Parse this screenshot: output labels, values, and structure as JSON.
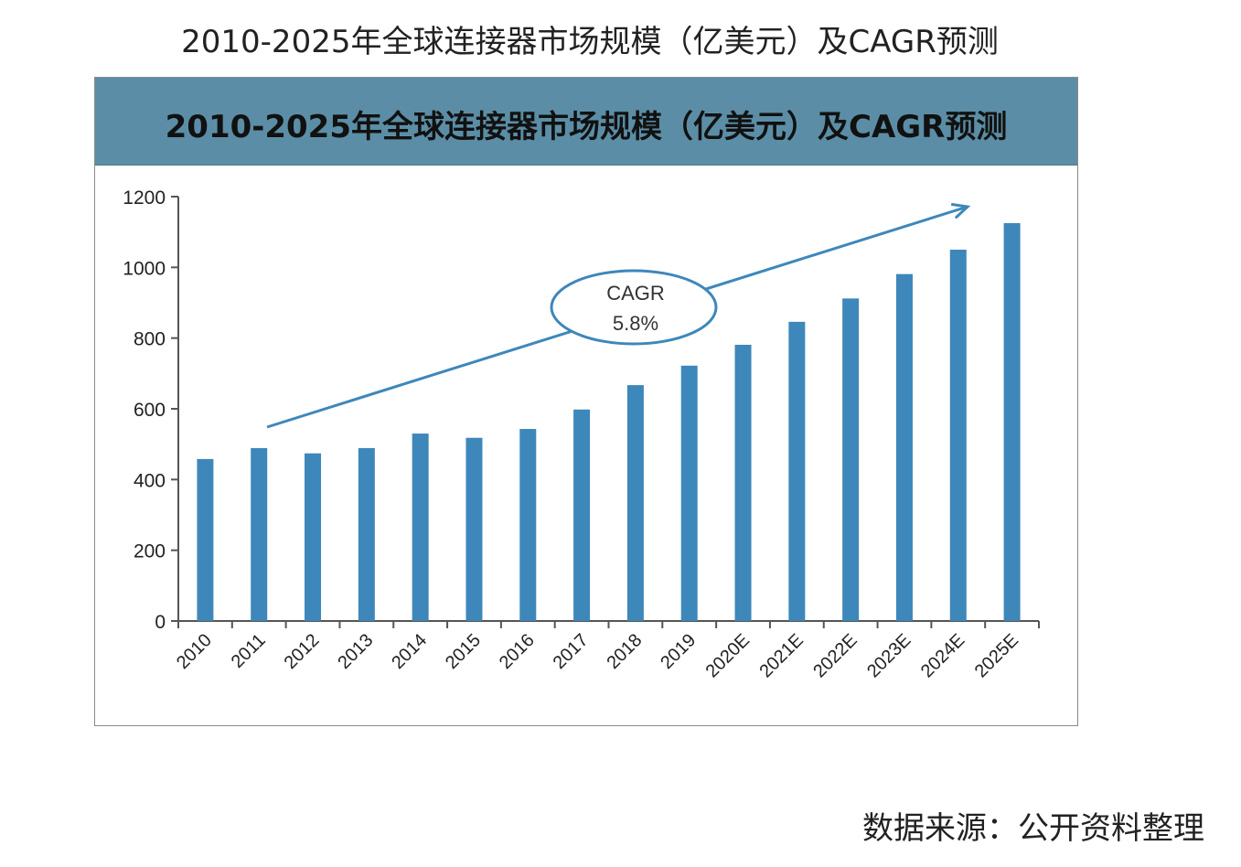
{
  "page": {
    "title": "2010-2025年全球连接器市场规模（亿美元）及CAGR预测",
    "source": "数据来源：公开资料整理"
  },
  "chart_data": {
    "type": "bar",
    "title": "2010-2025年全球连接器市场规模（亿美元）及CAGR预测",
    "categories": [
      "2010",
      "2011",
      "2012",
      "2013",
      "2014",
      "2015",
      "2016",
      "2017",
      "2018",
      "2019",
      "2020E",
      "2021E",
      "2022E",
      "2023E",
      "2024E",
      "2025E"
    ],
    "values": [
      458,
      489,
      474,
      489,
      530,
      518,
      543,
      598,
      667,
      722,
      781,
      846,
      912,
      981,
      1050,
      1125
    ],
    "ylim": [
      0,
      1200
    ],
    "yticks": [
      "0",
      "200",
      "400",
      "600",
      "800",
      "1000",
      "1200"
    ],
    "xlabel": "",
    "ylabel": "",
    "grid": false,
    "bar_color": "#3e87ba",
    "header_color": "#5b8ea6",
    "annotation": {
      "label": "CAGR",
      "value": "5.8%"
    }
  }
}
